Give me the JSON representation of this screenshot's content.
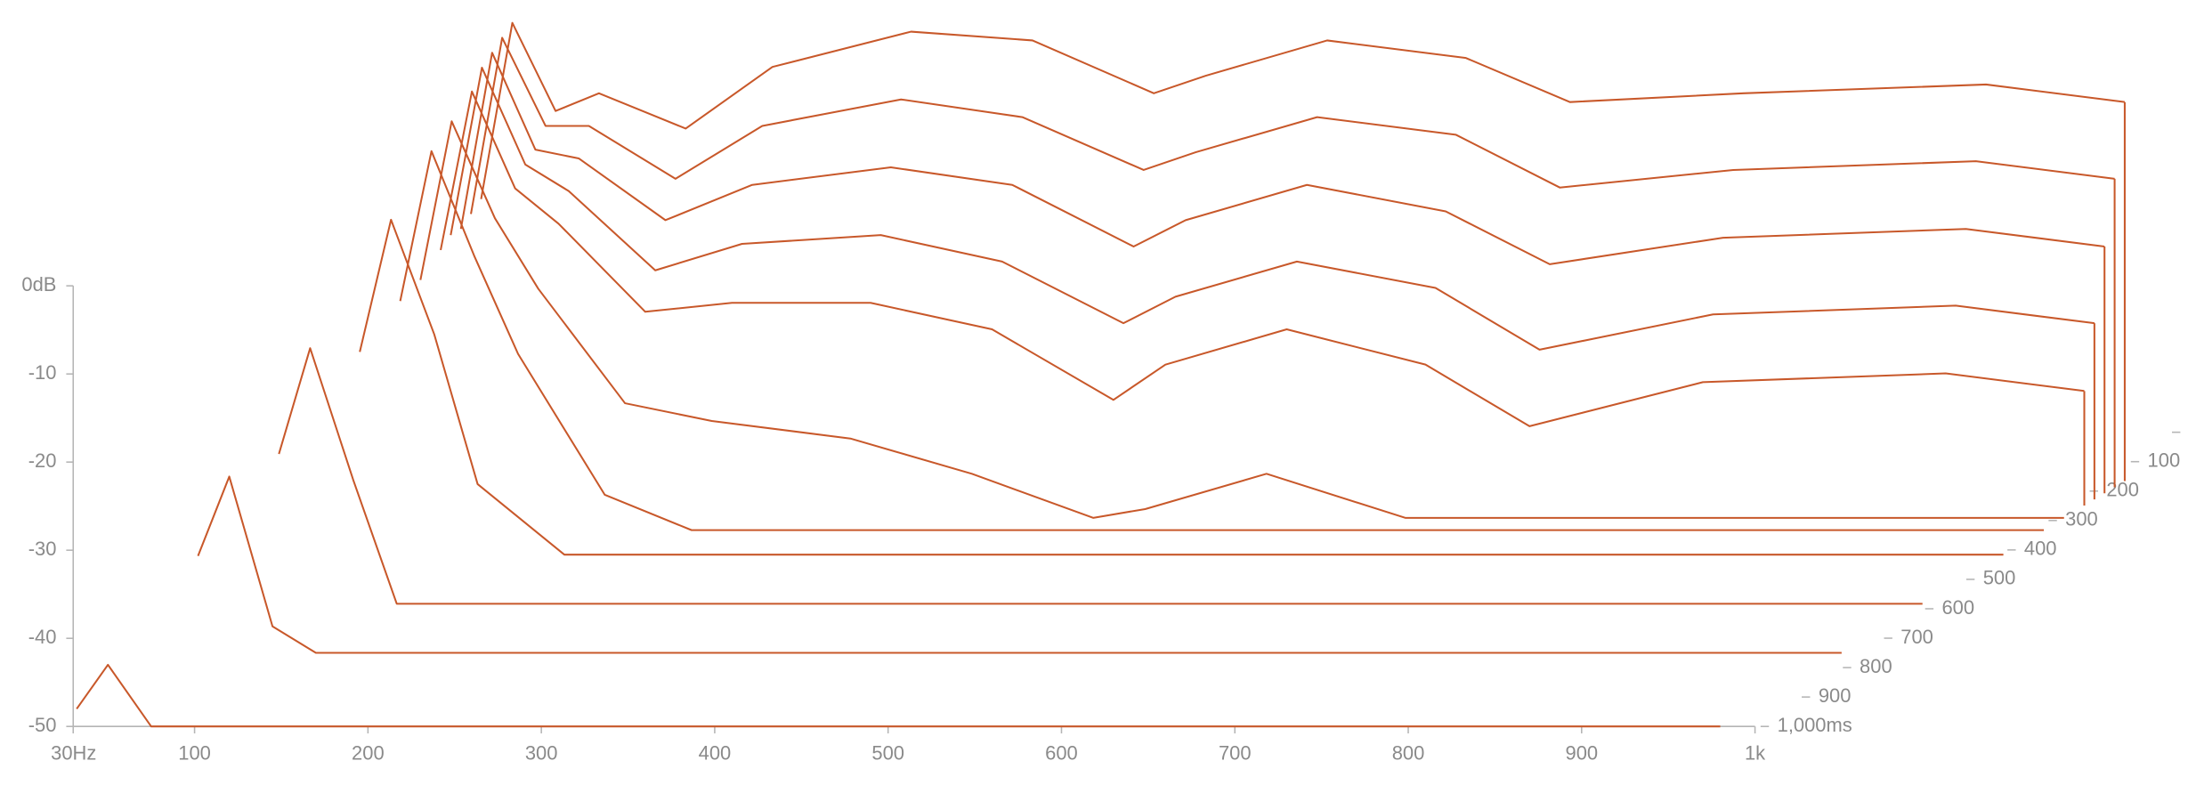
{
  "chart_data": {
    "type": "waterfall",
    "color": "#c8582a",
    "x": [
      32,
      50,
      75,
      100,
      150,
      200,
      280,
      350,
      420,
      450,
      520,
      600,
      660,
      760,
      900,
      980
    ],
    "z": [
      0,
      25,
      50,
      75,
      100,
      150,
      200,
      300,
      500,
      700,
      1000
    ],
    "series": [
      {
        "values": [
          -18,
          2,
          -8,
          -6,
          -10,
          -3,
          1,
          0,
          -6,
          -4,
          0,
          -2,
          -7,
          -6,
          -5,
          -7
        ]
      },
      {
        "values": [
          -19,
          1,
          -9,
          -9,
          -15,
          -9,
          -6,
          -8,
          -14,
          -12,
          -8,
          -10,
          -16,
          -14,
          -13,
          -15
        ]
      },
      {
        "values": [
          -20,
          0,
          -11,
          -12,
          -19,
          -15,
          -13,
          -15,
          -22,
          -19,
          -15,
          -18,
          -24,
          -21,
          -20,
          -22
        ]
      },
      {
        "values": [
          -20,
          -1,
          -12,
          -15,
          -24,
          -21,
          -20,
          -23,
          -30,
          -27,
          -23,
          -26,
          -33,
          -29,
          -28,
          -30
        ]
      },
      {
        "values": [
          -21,
          -3,
          -14,
          -18,
          -28,
          -27,
          -27,
          -30,
          -38,
          -34,
          -30,
          -34,
          -41,
          -36,
          -35,
          -37
        ]
      },
      {
        "values": [
          -23,
          -5,
          -16,
          -24,
          -37,
          -39,
          -41,
          -45,
          -50,
          -49,
          -45,
          -50,
          -50,
          -50,
          -50,
          -50
        ]
      },
      {
        "values": [
          -24,
          -7,
          -19,
          -30,
          -46,
          -50,
          -50,
          -50,
          -50,
          -50,
          -50,
          -50,
          -50,
          -50,
          -50,
          -50
        ]
      },
      {
        "values": [
          -27,
          -12,
          -25,
          -42,
          -50,
          -50,
          -50,
          -50,
          -50,
          -50,
          -50,
          -50,
          -50,
          -50,
          -50,
          -50
        ]
      },
      {
        "values": [
          -33,
          -21,
          -36,
          -50,
          -50,
          -50,
          -50,
          -50,
          -50,
          -50,
          -50,
          -50,
          -50,
          -50,
          -50,
          -50
        ]
      },
      {
        "values": [
          -39,
          -30,
          -47,
          -50,
          -50,
          -50,
          -50,
          -50,
          -50,
          -50,
          -50,
          -50,
          -50,
          -50,
          -50,
          -50
        ]
      },
      {
        "values": [
          -48,
          -43,
          -50,
          -50,
          -50,
          -50,
          -50,
          -50,
          -50,
          -50,
          -50,
          -50,
          -50,
          -50,
          -50,
          -50
        ]
      }
    ],
    "xlim": [
      30,
      1000
    ],
    "xticks": [
      {
        "value": 30,
        "label": "30Hz"
      },
      100,
      200,
      300,
      400,
      500,
      600,
      700,
      800,
      900,
      {
        "value": 1000,
        "label": "1k"
      }
    ],
    "ylim": [
      -50,
      0
    ],
    "yticks": [
      {
        "value": 0,
        "label": "0dB"
      },
      -10,
      -20,
      -30,
      -40,
      -50
    ],
    "zlim": [
      0,
      1000
    ],
    "zticks": [
      100,
      200,
      300,
      400,
      500,
      600,
      700,
      800,
      900,
      {
        "value": 1000,
        "label": "1,000ms"
      }
    ]
  }
}
